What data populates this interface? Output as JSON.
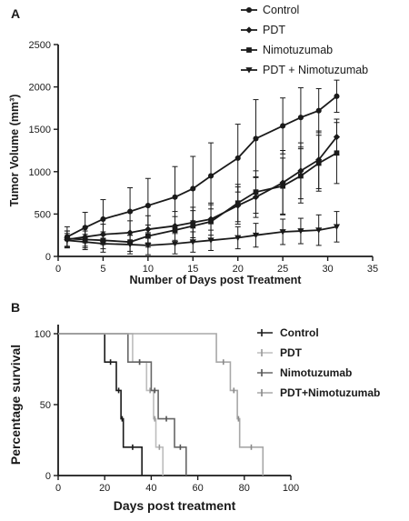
{
  "chart_data": [
    {
      "panel": "A",
      "type": "line",
      "xlabel": "Number of Days post Treatment",
      "ylabel": "Tumor Volume (mm³)",
      "xlim": [
        0,
        35
      ],
      "ylim": [
        0,
        2500
      ],
      "xticks": [
        0,
        5,
        10,
        15,
        20,
        25,
        30,
        35
      ],
      "yticks": [
        0,
        500,
        1000,
        1500,
        2000,
        2500
      ],
      "grid": false,
      "legend": "top-right",
      "x": [
        1,
        3,
        5,
        8,
        10,
        13,
        15,
        17,
        20,
        22,
        25,
        27,
        29,
        31
      ],
      "series": [
        {
          "name": "Control",
          "marker": "circle",
          "values": [
            230,
            340,
            440,
            530,
            600,
            700,
            800,
            950,
            1160,
            1390,
            1540,
            1640,
            1720,
            1890
          ],
          "errors": [
            120,
            180,
            230,
            280,
            320,
            360,
            380,
            390,
            400,
            460,
            330,
            350,
            260,
            190
          ]
        },
        {
          "name": "PDT",
          "marker": "diamond",
          "values": [
            200,
            230,
            260,
            280,
            320,
            360,
            400,
            440,
            600,
            700,
            870,
            1010,
            1140,
            1410
          ],
          "errors": [
            100,
            110,
            120,
            140,
            160,
            170,
            180,
            190,
            220,
            240,
            380,
            330,
            340,
            210
          ]
        },
        {
          "name": "Nimotuzumab",
          "marker": "square",
          "values": [
            210,
            200,
            190,
            170,
            240,
            310,
            360,
            410,
            630,
            760,
            830,
            950,
            1100,
            1220
          ],
          "errors": [
            90,
            100,
            100,
            110,
            130,
            160,
            180,
            200,
            220,
            250,
            330,
            320,
            330,
            360
          ]
        },
        {
          "name": "PDT + Nimotuzumab",
          "marker": "triangle-down",
          "values": [
            190,
            170,
            150,
            140,
            130,
            150,
            170,
            190,
            220,
            250,
            290,
            300,
            310,
            350
          ],
          "errors": [
            80,
            90,
            100,
            110,
            110,
            120,
            120,
            120,
            130,
            140,
            150,
            150,
            180,
            180
          ]
        }
      ]
    },
    {
      "panel": "B",
      "type": "line",
      "subtype": "kaplan-meier",
      "xlabel": "Days post treatment",
      "ylabel": "Percentage  survival",
      "xlim": [
        0,
        100
      ],
      "ylim": [
        0,
        100
      ],
      "xticks": [
        0,
        20,
        40,
        60,
        80,
        100
      ],
      "yticks": [
        0,
        50,
        100
      ],
      "grid": false,
      "legend": "top-right",
      "series": [
        {
          "name": "Control",
          "color": "#1a1a1a",
          "censor_color": "#1a1a1a",
          "steps": [
            [
              0,
              100
            ],
            [
              20,
              100
            ],
            [
              20,
              80
            ],
            [
              25,
              80
            ],
            [
              25,
              60
            ],
            [
              27,
              60
            ],
            [
              27,
              40
            ],
            [
              28,
              40
            ],
            [
              28,
              20
            ],
            [
              36,
              20
            ],
            [
              36,
              0
            ]
          ]
        },
        {
          "name": "PDT",
          "color": "#bdbdbd",
          "censor_color": "#9a9a9a",
          "steps": [
            [
              0,
              100
            ],
            [
              32,
              100
            ],
            [
              32,
              80
            ],
            [
              38,
              80
            ],
            [
              38,
              60
            ],
            [
              41,
              60
            ],
            [
              41,
              40
            ],
            [
              42,
              40
            ],
            [
              42,
              20
            ],
            [
              45,
              20
            ],
            [
              45,
              0
            ]
          ]
        },
        {
          "name": "Nimotuzumab",
          "color": "#666666",
          "censor_color": "#555555",
          "steps": [
            [
              0,
              100
            ],
            [
              30,
              100
            ],
            [
              30,
              80
            ],
            [
              40,
              80
            ],
            [
              40,
              60
            ],
            [
              43,
              60
            ],
            [
              43,
              40
            ],
            [
              50,
              40
            ],
            [
              50,
              20
            ],
            [
              55,
              20
            ],
            [
              55,
              0
            ]
          ]
        },
        {
          "name": "PDT+Nimotuzumab",
          "color": "#a8a8a8",
          "censor_color": "#8a8a8a",
          "steps": [
            [
              0,
              100
            ],
            [
              68,
              100
            ],
            [
              68,
              80
            ],
            [
              74,
              80
            ],
            [
              74,
              60
            ],
            [
              77,
              60
            ],
            [
              77,
              40
            ],
            [
              78,
              40
            ],
            [
              78,
              20
            ],
            [
              88,
              20
            ],
            [
              88,
              0
            ]
          ]
        }
      ]
    }
  ]
}
